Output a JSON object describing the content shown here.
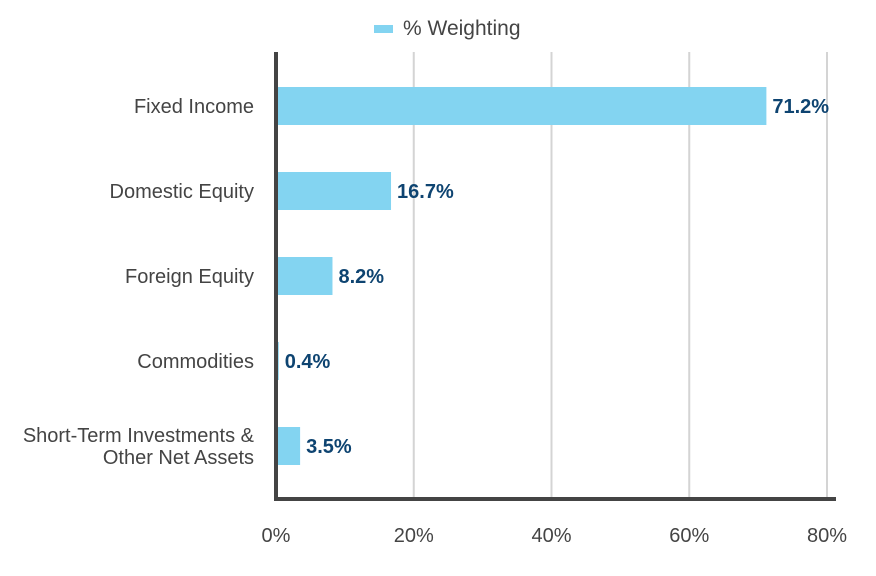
{
  "chart_data": {
    "type": "bar",
    "orientation": "horizontal",
    "categories": [
      [
        "Fixed Income"
      ],
      [
        "Domestic Equity"
      ],
      [
        "Foreign Equity"
      ],
      [
        "Commodities"
      ],
      [
        "Short-Term Investments &",
        "Other Net Assets"
      ]
    ],
    "series": [
      {
        "name": "% Weighting",
        "values": [
          71.2,
          16.7,
          8.2,
          0.4,
          3.5
        ],
        "data_labels": [
          "71.2%",
          "16.7%",
          "8.2%",
          "0.4%",
          "3.5%"
        ]
      }
    ],
    "xlim": [
      0,
      80
    ],
    "xticks": [
      0,
      20,
      40,
      60,
      80
    ],
    "xtick_labels": [
      "0%",
      "20%",
      "40%",
      "60%",
      "80%"
    ],
    "grid": "vertical",
    "legend": "top-center",
    "colors": {
      "bar": "#83d4f1",
      "data_label": "#0e4471",
      "axis": "#444444",
      "grid": "#d4d4d4"
    }
  }
}
